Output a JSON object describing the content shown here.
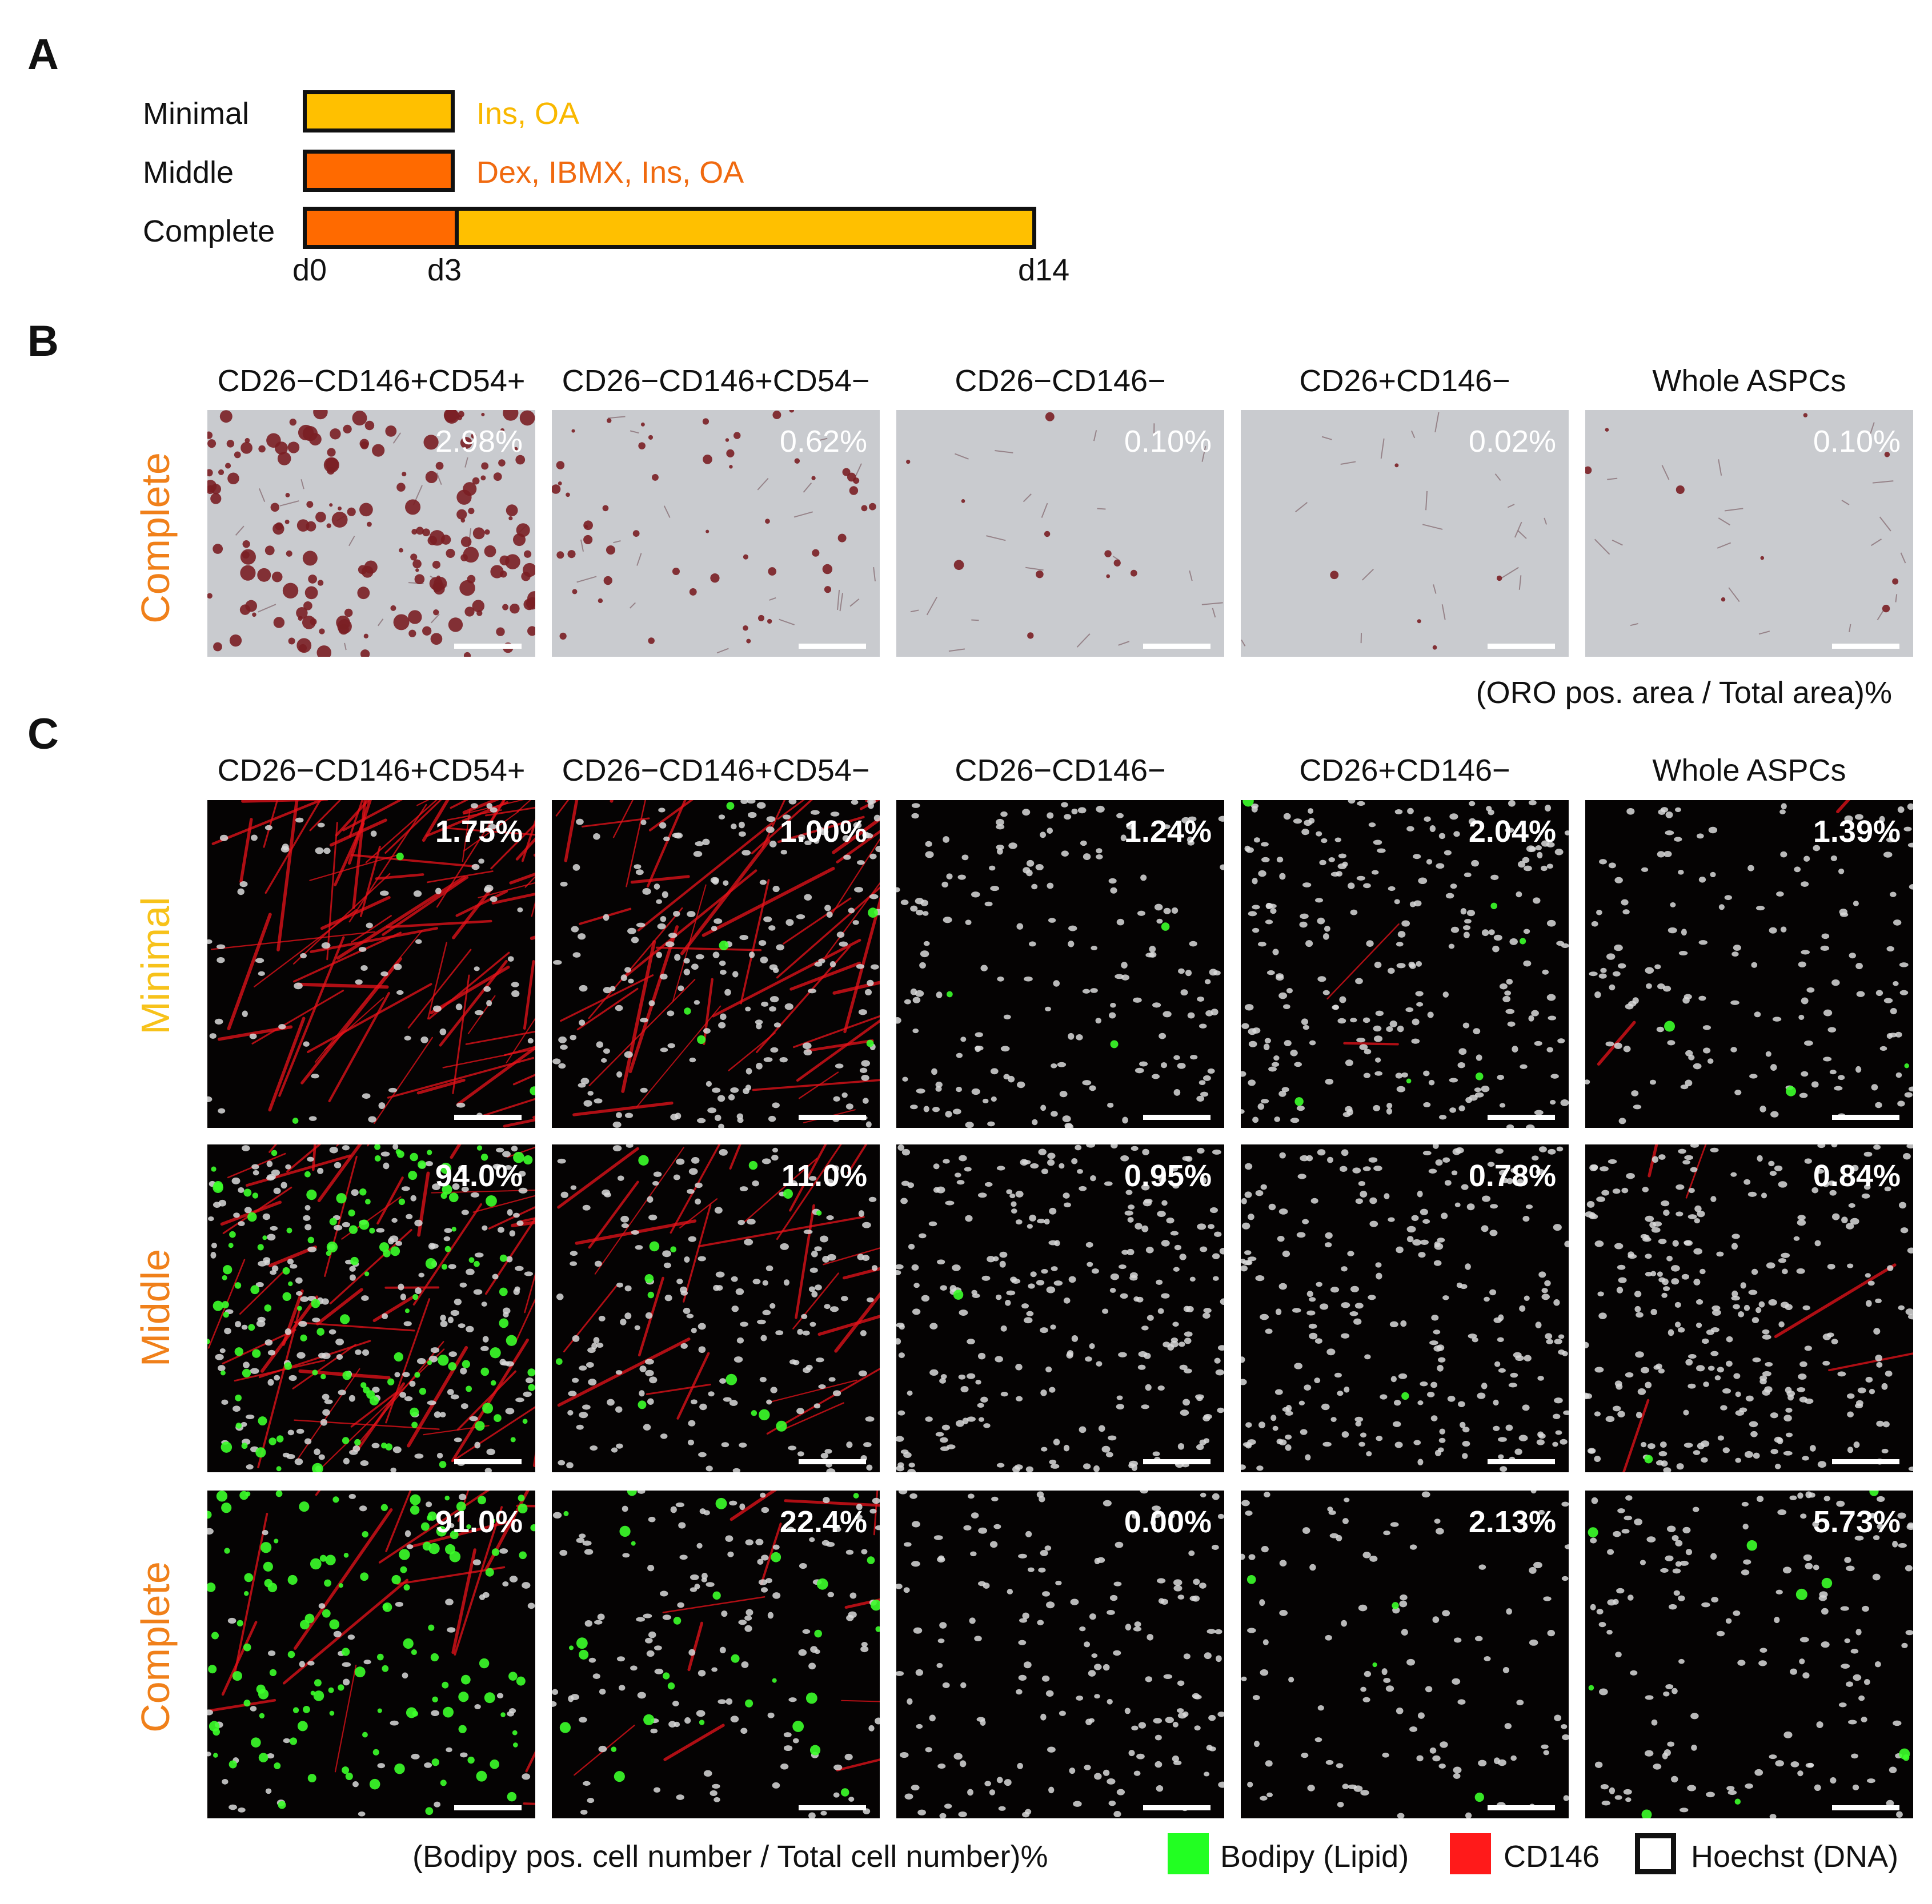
{
  "panel_a": {
    "letter": "A",
    "protocols": [
      {
        "name": "Minimal",
        "cocktail": "Ins, OA",
        "cocktail_color": "#F9B800"
      },
      {
        "name": "Middle",
        "cocktail": "Dex, IBMX, Ins, OA",
        "cocktail_color": "#F06A10"
      },
      {
        "name": "Complete"
      }
    ],
    "ticks": [
      "d0",
      "d3",
      "d14"
    ],
    "colors": {
      "yellow": "#FFC000",
      "orange": "#FF6A00",
      "outline": "#111111"
    }
  },
  "panel_b": {
    "letter": "B",
    "columns": [
      "CD26−CD146+CD54+",
      "CD26−CD146+CD54−",
      "CD26−CD146−",
      "CD26+CD146−",
      "Whole ASPCs"
    ],
    "row_label": "Complete",
    "row_label_color": "#F0801A",
    "values": [
      "2.98%",
      "0.62%",
      "0.10%",
      "0.02%",
      "0.10%"
    ],
    "caption": "(ORO pos. area / Total area)%"
  },
  "panel_c": {
    "letter": "C",
    "columns": [
      "CD26−CD146+CD54+",
      "CD26−CD146+CD54−",
      "CD26−CD146−",
      "CD26+CD146−",
      "Whole ASPCs"
    ],
    "rows": [
      {
        "label": "Minimal",
        "color": "#F7C21A",
        "values": [
          "1.75%",
          "1.00%",
          "1.24%",
          "2.04%",
          "1.39%"
        ]
      },
      {
        "label": "Middle",
        "color": "#F0801A",
        "values": [
          "94.0%",
          "11.0%",
          "0.95%",
          "0.78%",
          "0.84%"
        ]
      },
      {
        "label": "Complete",
        "color": "#F0801A",
        "values": [
          "91.0%",
          "22.4%",
          "0.00%",
          "2.13%",
          "5.73%"
        ]
      }
    ],
    "caption": "(Bodipy pos. cell number / Total cell number)%",
    "legend": [
      {
        "label": "Bodipy (Lipid)",
        "color": "#22FF22"
      },
      {
        "label": "CD146",
        "color": "#FF1A1A"
      },
      {
        "label": "Hoechst (DNA)",
        "color": "#FFFFFF"
      }
    ]
  }
}
